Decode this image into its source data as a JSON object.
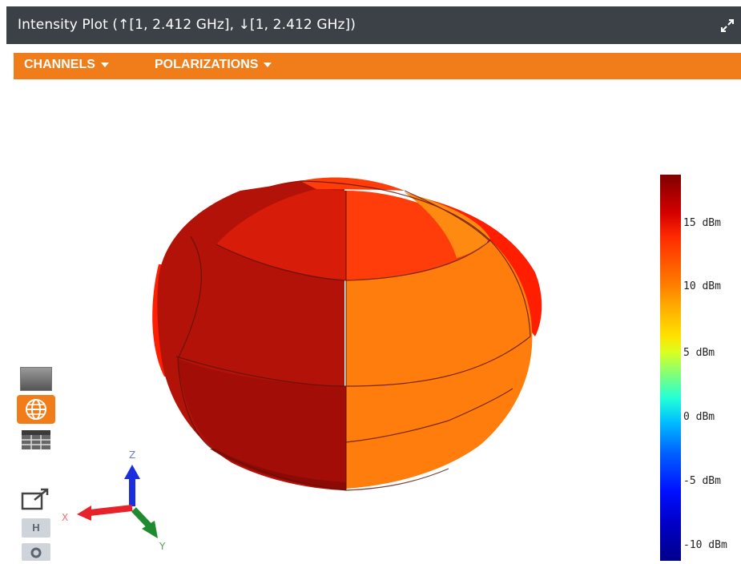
{
  "window": {
    "title": "Intensity Plot (↑[1, 2.412 GHz], ↓[1, 2.412 GHz])",
    "expand_icon": "expand-icon"
  },
  "menubar": {
    "channels_label": "CHANNELS",
    "polarizations_label": "POLARIZATIONS",
    "background_color": "#f07d1a"
  },
  "axes": {
    "x_label": "X",
    "y_label": "Y",
    "z_label": "Z",
    "colors": {
      "x": "#e8222a",
      "y": "#1f8a2e",
      "z": "#1a2ee0"
    }
  },
  "colorbar": {
    "labels": [
      "15 dBm",
      "10 dBm",
      "5 dBm",
      "0 dBm",
      "-5 dBm",
      "-10 dBm"
    ],
    "colors": [
      "#7f0000",
      "#ff2a00",
      "#ff7a00",
      "#ffe300",
      "#22ffd9",
      "#0010ff",
      "#00008a"
    ]
  },
  "toolbar": {
    "buttons": [
      {
        "name": "image-view-icon"
      },
      {
        "name": "globe-icon",
        "active": true
      },
      {
        "name": "table-icon"
      },
      {
        "name": "popout-icon"
      },
      {
        "name": "home-h-button",
        "label": "H"
      },
      {
        "name": "pin-icon"
      }
    ]
  },
  "surface_colors": {
    "dark": "#a30d08",
    "mid": "#d81c0a",
    "bright": "#ff3d0a",
    "orange": "#ff7d0c",
    "edge_red": "#ff1e00"
  }
}
